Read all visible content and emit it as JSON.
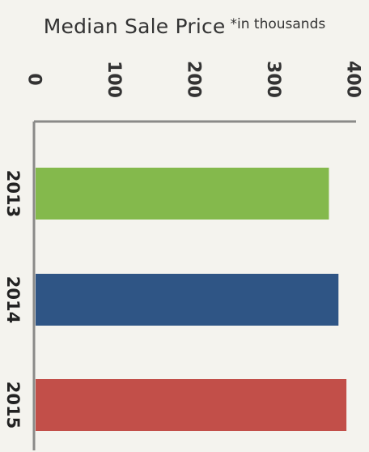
{
  "chart_data": {
    "type": "bar",
    "orientation": "horizontal",
    "title": "Median Sale Price",
    "subtitle": "*in thousands",
    "categories": [
      "2013",
      "2014",
      "2015"
    ],
    "values": [
      370,
      382,
      392
    ],
    "xlim": [
      0,
      400
    ],
    "ticks": [
      "0",
      "100",
      "200",
      "300",
      "400"
    ],
    "colors": [
      "#84b94c",
      "#2f5585",
      "#c24f49"
    ],
    "axis_color": "#8a8a88",
    "grid": false,
    "legend": "none"
  }
}
